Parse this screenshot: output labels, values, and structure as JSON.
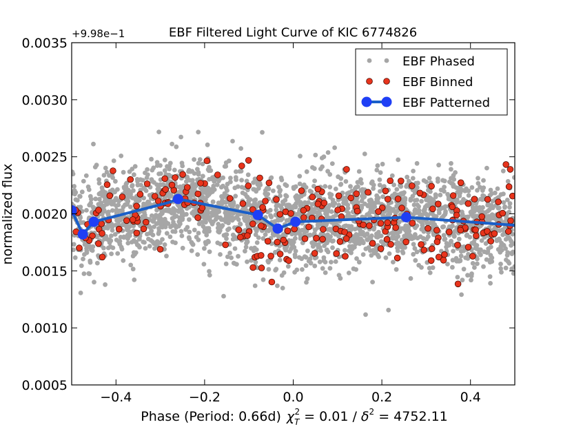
{
  "chart_data": {
    "type": "scatter",
    "title": "EBF Filtered Light Curve of KIC 6774826",
    "xlabel": "Phase (Period: 0.66d)",
    "xlabel_chi": "χ",
    "xlabel_chi_sub": "T",
    "xlabel_chi_sup": "2",
    "xlabel_mid": " = 0.01 / ",
    "xlabel_delta": "δ",
    "xlabel_delta_sup": "2",
    "xlabel_end": " = 4752.11",
    "ylabel": "normalized flux",
    "y_offset_label": "+9.98e−1",
    "xlim": [
      -0.5,
      0.5
    ],
    "ylim": [
      0.0005,
      0.0035
    ],
    "x_ticks": [
      -0.4,
      -0.2,
      0.0,
      0.2,
      0.4
    ],
    "x_tick_labels": [
      "−0.4",
      "−0.2",
      "0.0",
      "0.2",
      "0.4"
    ],
    "y_ticks": [
      0.0005,
      0.001,
      0.0015,
      0.002,
      0.0025,
      0.003,
      0.0035
    ],
    "y_tick_labels": [
      "0.0005",
      "0.0010",
      "0.0015",
      "0.0020",
      "0.0025",
      "0.0030",
      "0.0035"
    ],
    "legend_position": "top-right",
    "grid": false,
    "phased_point_count": 2600,
    "binned_point_count": 230,
    "noise_sigma": 0.0002,
    "trend": {
      "x": [
        -0.5,
        -0.475,
        -0.45,
        -0.28,
        -0.26,
        -0.08,
        -0.035,
        0.005,
        0.255,
        0.5
      ],
      "y": [
        0.00203,
        0.00182,
        0.00193,
        0.0021,
        0.00213,
        0.00199,
        0.00187,
        0.00193,
        0.00197,
        0.0019
      ]
    },
    "series": [
      {
        "name": "EBF Phased",
        "color": "#a6a6a6",
        "marker": "circle",
        "radius": 3.4
      },
      {
        "name": "EBF Binned",
        "color": "#e8341c",
        "edge": "#4a0a00",
        "marker": "circle",
        "radius": 4.4
      },
      {
        "name": "EBF Patterned",
        "color": "#1f3ff5",
        "line_color": "#1a5fc8",
        "marker": "circle",
        "radius": 7.5,
        "x": [
          -0.5,
          -0.475,
          -0.45,
          -0.26,
          -0.08,
          -0.035,
          0.005,
          0.255
        ],
        "y": [
          0.00203,
          0.00182,
          0.00193,
          0.00213,
          0.00199,
          0.00187,
          0.00193,
          0.00197
        ]
      }
    ]
  }
}
